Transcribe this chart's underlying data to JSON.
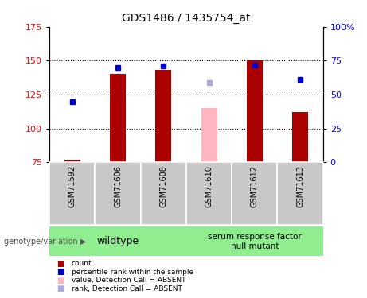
{
  "title": "GDS1486 / 1435754_at",
  "samples": [
    "GSM71592",
    "GSM71606",
    "GSM71608",
    "GSM71610",
    "GSM71612",
    "GSM71613"
  ],
  "bar_bottom": 75,
  "ylim_left": [
    75,
    175
  ],
  "ylim_right": [
    0,
    100
  ],
  "yticks_left": [
    75,
    100,
    125,
    150,
    175
  ],
  "yticks_right": [
    0,
    25,
    50,
    75,
    100
  ],
  "bar_values": [
    77,
    140,
    143,
    null,
    150,
    112
  ],
  "bar_values_absent": [
    null,
    null,
    null,
    115,
    null,
    null
  ],
  "rank_values": [
    120,
    145,
    146,
    null,
    147,
    136
  ],
  "rank_absent": [
    null,
    null,
    null,
    134,
    null,
    null
  ],
  "bar_color_dark_red": "#AA0000",
  "bar_color_pink": "#FFB6C1",
  "rank_color_blue": "#0000CC",
  "rank_color_light_blue": "#AAAADD",
  "wildtype_label": "wildtype",
  "mutant_label": "serum response factor\nnull mutant",
  "genotype_label": "genotype/variation",
  "legend_items": [
    {
      "label": "count",
      "color": "#AA0000"
    },
    {
      "label": "percentile rank within the sample",
      "color": "#0000CC"
    },
    {
      "label": "value, Detection Call = ABSENT",
      "color": "#FFB6C1"
    },
    {
      "label": "rank, Detection Call = ABSENT",
      "color": "#AAAADD"
    }
  ],
  "background_sample": "#C8C8C8",
  "background_green": "#90EE90",
  "hgrid_values": [
    100,
    125,
    150
  ],
  "bar_width": 0.35
}
